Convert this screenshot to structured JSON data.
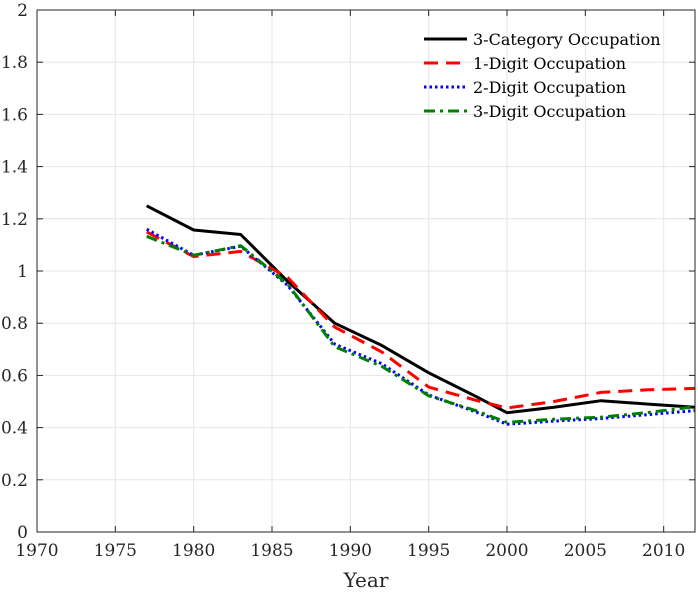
{
  "chart_data": {
    "type": "line",
    "title": "",
    "xlabel": "Year",
    "ylabel": "",
    "xlim": [
      1970,
      2012
    ],
    "ylim": [
      0,
      2
    ],
    "xticks": [
      1970,
      1975,
      1980,
      1985,
      1990,
      1995,
      2000,
      2005,
      2010
    ],
    "yticks": [
      0,
      0.2,
      0.4,
      0.6,
      0.8,
      1,
      1.2,
      1.4,
      1.6,
      1.8,
      2
    ],
    "xtick_labels": [
      "1970",
      "1975",
      "1980",
      "1985",
      "1990",
      "1995",
      "2000",
      "2005",
      "2010"
    ],
    "ytick_labels": [
      "0",
      "0.2",
      "0.4",
      "0.6",
      "0.8",
      "1",
      "1.2",
      "1.4",
      "1.6",
      "1.8",
      "2"
    ],
    "grid": true,
    "legend_position": "top-right",
    "series": [
      {
        "name": "3-Category Occupation",
        "color": "#000000",
        "style": "solid",
        "x": [
          1977,
          1980,
          1983,
          1986,
          1989,
          1992,
          1995,
          1998,
          2000,
          2003,
          2006,
          2009,
          2012
        ],
        "y": [
          1.25,
          1.157,
          1.14,
          0.96,
          0.8,
          0.715,
          0.61,
          0.52,
          0.457,
          0.478,
          0.503,
          0.49,
          0.478
        ]
      },
      {
        "name": "1-Digit Occupation",
        "color": "#ff0000",
        "style": "dashed",
        "x": [
          1977,
          1980,
          1983,
          1986,
          1989,
          1992,
          1995,
          1998,
          2000,
          2003,
          2006,
          2009,
          2012
        ],
        "y": [
          1.15,
          1.055,
          1.075,
          0.975,
          0.785,
          0.69,
          0.555,
          0.505,
          0.475,
          0.5,
          0.535,
          0.545,
          0.55
        ]
      },
      {
        "name": "2-Digit Occupation",
        "color": "#0000ff",
        "style": "dotted",
        "x": [
          1977,
          1980,
          1983,
          1986,
          1989,
          1992,
          1995,
          1998,
          2000,
          2003,
          2006,
          2009,
          2012
        ],
        "y": [
          1.16,
          1.06,
          1.095,
          0.945,
          0.72,
          0.645,
          0.525,
          0.46,
          0.413,
          0.425,
          0.435,
          0.45,
          0.465
        ]
      },
      {
        "name": "3-Digit Occupation",
        "color": "#008000",
        "style": "dashdot",
        "x": [
          1977,
          1980,
          1983,
          1986,
          1989,
          1992,
          1995,
          1998,
          2000,
          2003,
          2006,
          2009,
          2012
        ],
        "y": [
          1.133,
          1.06,
          1.097,
          0.95,
          0.71,
          0.635,
          0.522,
          0.465,
          0.42,
          0.432,
          0.44,
          0.458,
          0.48
        ]
      }
    ]
  }
}
